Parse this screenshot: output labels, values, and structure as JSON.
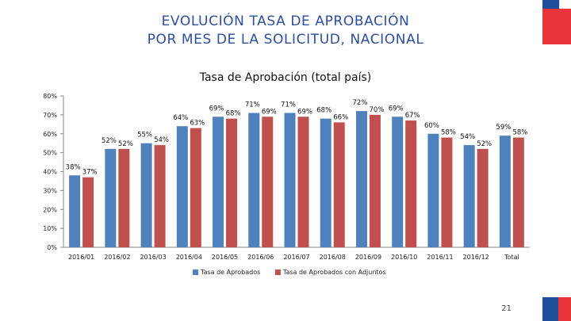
{
  "slide": {
    "title_line1": "EVOLUCIÓN TASA DE APROBACIÓN",
    "title_line2": "POR MES DE LA SOLICITUD, NACIONAL",
    "page_number": "21"
  },
  "colors": {
    "title": "#2e4e9e",
    "series_1": "#4f81bd",
    "series_2": "#c0504d",
    "gridline": "#d9d9d9"
  },
  "chart_data": {
    "type": "bar",
    "title": "Tasa de Aprobación (total país)",
    "categories": [
      "2016/01",
      "2016/02",
      "2016/03",
      "2016/04",
      "2016/05",
      "2016/06",
      "2016/07",
      "2016/08",
      "2016/09",
      "2016/10",
      "2016/11",
      "2016/12",
      "Total"
    ],
    "series": [
      {
        "name": "Tasa de Aprobados",
        "values": [
          38,
          52,
          55,
          64,
          69,
          71,
          71,
          68,
          72,
          69,
          60,
          54,
          59
        ]
      },
      {
        "name": "Tasa de Aprobados con Adjuntos",
        "values": [
          37,
          52,
          54,
          63,
          68,
          69,
          69,
          66,
          70,
          67,
          58,
          52,
          58
        ]
      }
    ],
    "ylim": [
      0,
      80
    ],
    "yticks": [
      "0%",
      "10%",
      "20%",
      "30%",
      "40%",
      "50%",
      "60%",
      "70%",
      "80%"
    ],
    "xlabel": "",
    "ylabel": "",
    "grid": false,
    "legend": "bottom"
  }
}
